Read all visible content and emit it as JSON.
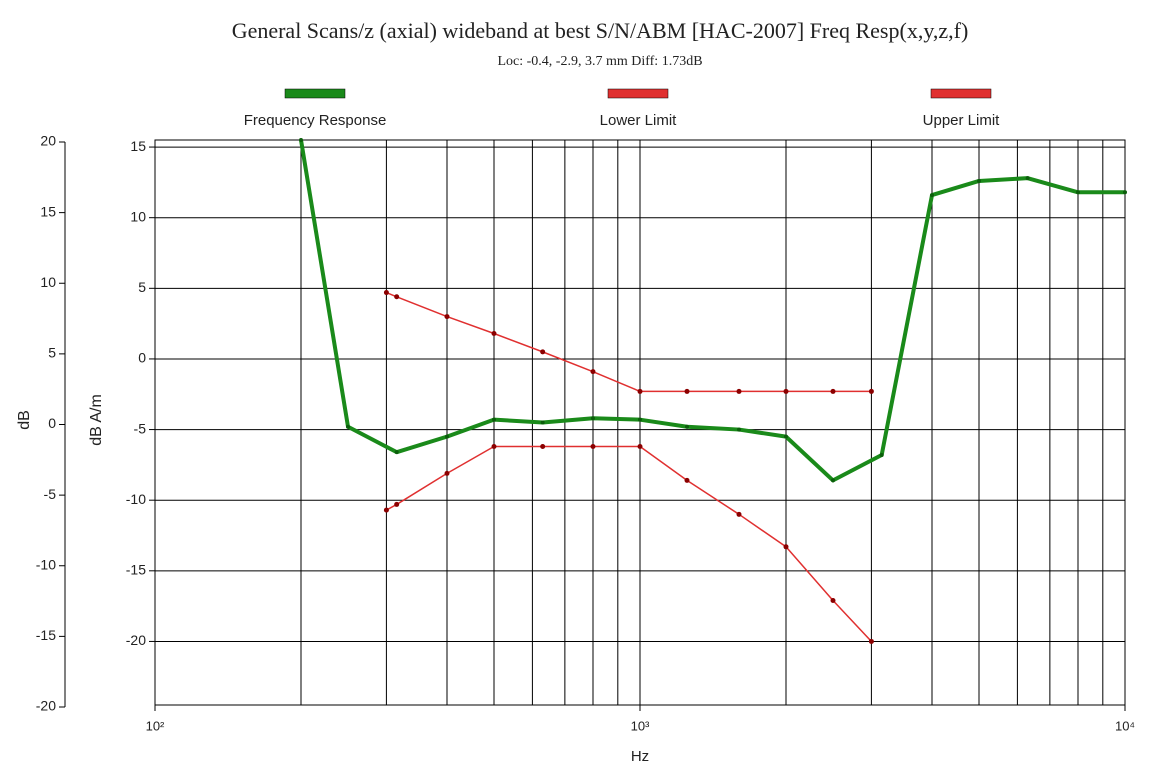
{
  "chart_data": {
    "type": "line",
    "title": "General Scans/z (axial) wideband at best S/N/ABM [HAC-2007] Freq Resp(x,y,z,f)",
    "subtitle": "Loc: -0.4, -2.9, 3.7 mm Diff: 1.73dB",
    "xlabel": "Hz",
    "ylabel": "dB A/m",
    "y2label": "dB",
    "xscale": "log",
    "xlim": [
      100,
      10000
    ],
    "xticks": [
      {
        "value": 100,
        "label": "10²"
      },
      {
        "value": 1000,
        "label": "10³"
      },
      {
        "value": 10000,
        "label": "10⁴"
      }
    ],
    "ylim": [
      -24.5,
      15.5
    ],
    "yticks": [
      15,
      10,
      5,
      0,
      -5,
      -10,
      -15,
      -20
    ],
    "y2lim": [
      -20,
      20
    ],
    "y2ticks": [
      20,
      15,
      10,
      5,
      0,
      -5,
      -10,
      -15,
      -20
    ],
    "grid": true,
    "legend": "top",
    "series": [
      {
        "name": "Frequency Response",
        "color": "#1a8a1a",
        "x": [
          200,
          250,
          315,
          400,
          500,
          630,
          800,
          1000,
          1250,
          1600,
          2000,
          2500,
          3150,
          4000,
          5000,
          6300,
          8000,
          10000
        ],
        "values": [
          15.5,
          -4.8,
          -6.6,
          -5.5,
          -4.3,
          -4.5,
          -4.2,
          -4.3,
          -4.8,
          -5.0,
          -5.5,
          -8.6,
          -6.8,
          11.6,
          12.6,
          12.8,
          11.8,
          11.8
        ]
      },
      {
        "name": "Lower Limit",
        "color": "#e03030",
        "x": [
          300,
          315,
          400,
          500,
          630,
          800,
          1000,
          1250,
          1600,
          2000,
          2500,
          3000
        ],
        "values": [
          -10.7,
          -10.3,
          -8.1,
          -6.2,
          -6.2,
          -6.2,
          -6.2,
          -8.6,
          -11.0,
          -13.3,
          -17.1,
          -20.0
        ]
      },
      {
        "name": "Upper Limit",
        "color": "#e03030",
        "x": [
          300,
          315,
          400,
          500,
          630,
          800,
          1000,
          1250,
          1600,
          2000,
          2500,
          3000
        ],
        "values": [
          4.7,
          4.4,
          3.0,
          1.8,
          0.5,
          -0.9,
          -2.3,
          -2.3,
          -2.3,
          -2.3,
          -2.3,
          -2.3
        ]
      }
    ]
  }
}
